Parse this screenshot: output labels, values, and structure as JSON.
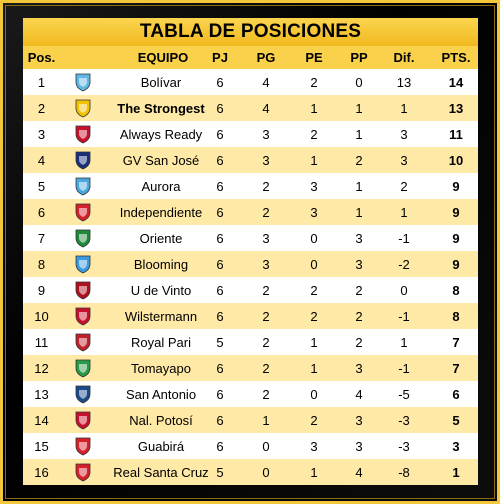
{
  "title": "TABLA DE POSICIONES",
  "columns": {
    "pos": "Pos.",
    "team": "EQUIPO",
    "pj": "PJ",
    "pg": "PG",
    "pe": "PE",
    "pp": "PP",
    "dif": "Dif.",
    "pts": "PTS."
  },
  "rows": [
    {
      "pos": "1",
      "team": "Bolívar",
      "pj": "6",
      "pg": "4",
      "pe": "2",
      "pp": "0",
      "dif": "13",
      "pts": "14",
      "crest": "bolivar-crest",
      "color": "#5fb7e6"
    },
    {
      "pos": "2",
      "team": "The Strongest",
      "pj": "6",
      "pg": "4",
      "pe": "1",
      "pp": "1",
      "dif": "1",
      "pts": "13",
      "crest": "the-strongest-crest",
      "color": "#f2c200"
    },
    {
      "pos": "3",
      "team": "Always Ready",
      "pj": "6",
      "pg": "3",
      "pe": "2",
      "pp": "1",
      "dif": "3",
      "pts": "11",
      "crest": "always-ready-crest",
      "color": "#c8102e"
    },
    {
      "pos": "4",
      "team": "GV San José",
      "pj": "6",
      "pg": "3",
      "pe": "1",
      "pp": "2",
      "dif": "3",
      "pts": "10",
      "crest": "gv-san-jose-crest",
      "color": "#1a2f7a"
    },
    {
      "pos": "5",
      "team": "Aurora",
      "pj": "6",
      "pg": "2",
      "pe": "3",
      "pp": "1",
      "dif": "2",
      "pts": "9",
      "crest": "aurora-crest",
      "color": "#4aa8e0"
    },
    {
      "pos": "6",
      "team": "Independiente",
      "pj": "6",
      "pg": "2",
      "pe": "3",
      "pp": "1",
      "dif": "1",
      "pts": "9",
      "crest": "independiente-crest",
      "color": "#d6202a"
    },
    {
      "pos": "7",
      "team": "Oriente",
      "pj": "6",
      "pg": "3",
      "pe": "0",
      "pp": "3",
      "dif": "-1",
      "pts": "9",
      "crest": "oriente-crest",
      "color": "#1f8a3a"
    },
    {
      "pos": "8",
      "team": "Blooming",
      "pj": "6",
      "pg": "3",
      "pe": "0",
      "pp": "3",
      "dif": "-2",
      "pts": "9",
      "crest": "blooming-crest",
      "color": "#3b9be0"
    },
    {
      "pos": "9",
      "team": "U de Vinto",
      "pj": "6",
      "pg": "2",
      "pe": "2",
      "pp": "2",
      "dif": "0",
      "pts": "8",
      "crest": "u-de-vinto-crest",
      "color": "#b0101e"
    },
    {
      "pos": "10",
      "team": "Wilstermann",
      "pj": "6",
      "pg": "2",
      "pe": "2",
      "pp": "2",
      "dif": "-1",
      "pts": "8",
      "crest": "wilstermann-crest",
      "color": "#c8102e"
    },
    {
      "pos": "11",
      "team": "Royal Pari",
      "pj": "5",
      "pg": "2",
      "pe": "1",
      "pp": "2",
      "dif": "1",
      "pts": "7",
      "crest": "royal-pari-crest",
      "color": "#c0202a"
    },
    {
      "pos": "12",
      "team": "Tomayapo",
      "pj": "6",
      "pg": "2",
      "pe": "1",
      "pp": "3",
      "dif": "-1",
      "pts": "7",
      "crest": "tomayapo-crest",
      "color": "#2a9a48"
    },
    {
      "pos": "13",
      "team": "San Antonio",
      "pj": "6",
      "pg": "2",
      "pe": "0",
      "pp": "4",
      "dif": "-5",
      "pts": "6",
      "crest": "san-antonio-crest",
      "color": "#1a4a8a"
    },
    {
      "pos": "14",
      "team": "Nal. Potosí",
      "pj": "6",
      "pg": "1",
      "pe": "2",
      "pp": "3",
      "dif": "-3",
      "pts": "5",
      "crest": "nal-potosi-crest",
      "color": "#c8102e"
    },
    {
      "pos": "15",
      "team": "Guabirá",
      "pj": "6",
      "pg": "0",
      "pe": "3",
      "pp": "3",
      "dif": "-3",
      "pts": "3",
      "crest": "guabira-crest",
      "color": "#d6202a"
    },
    {
      "pos": "16",
      "team": "Real Santa Cruz",
      "pj": "5",
      "pg": "0",
      "pe": "1",
      "pp": "4",
      "dif": "-8",
      "pts": "1",
      "crest": "real-santa-cruz-crest",
      "color": "#d6202a"
    }
  ]
}
